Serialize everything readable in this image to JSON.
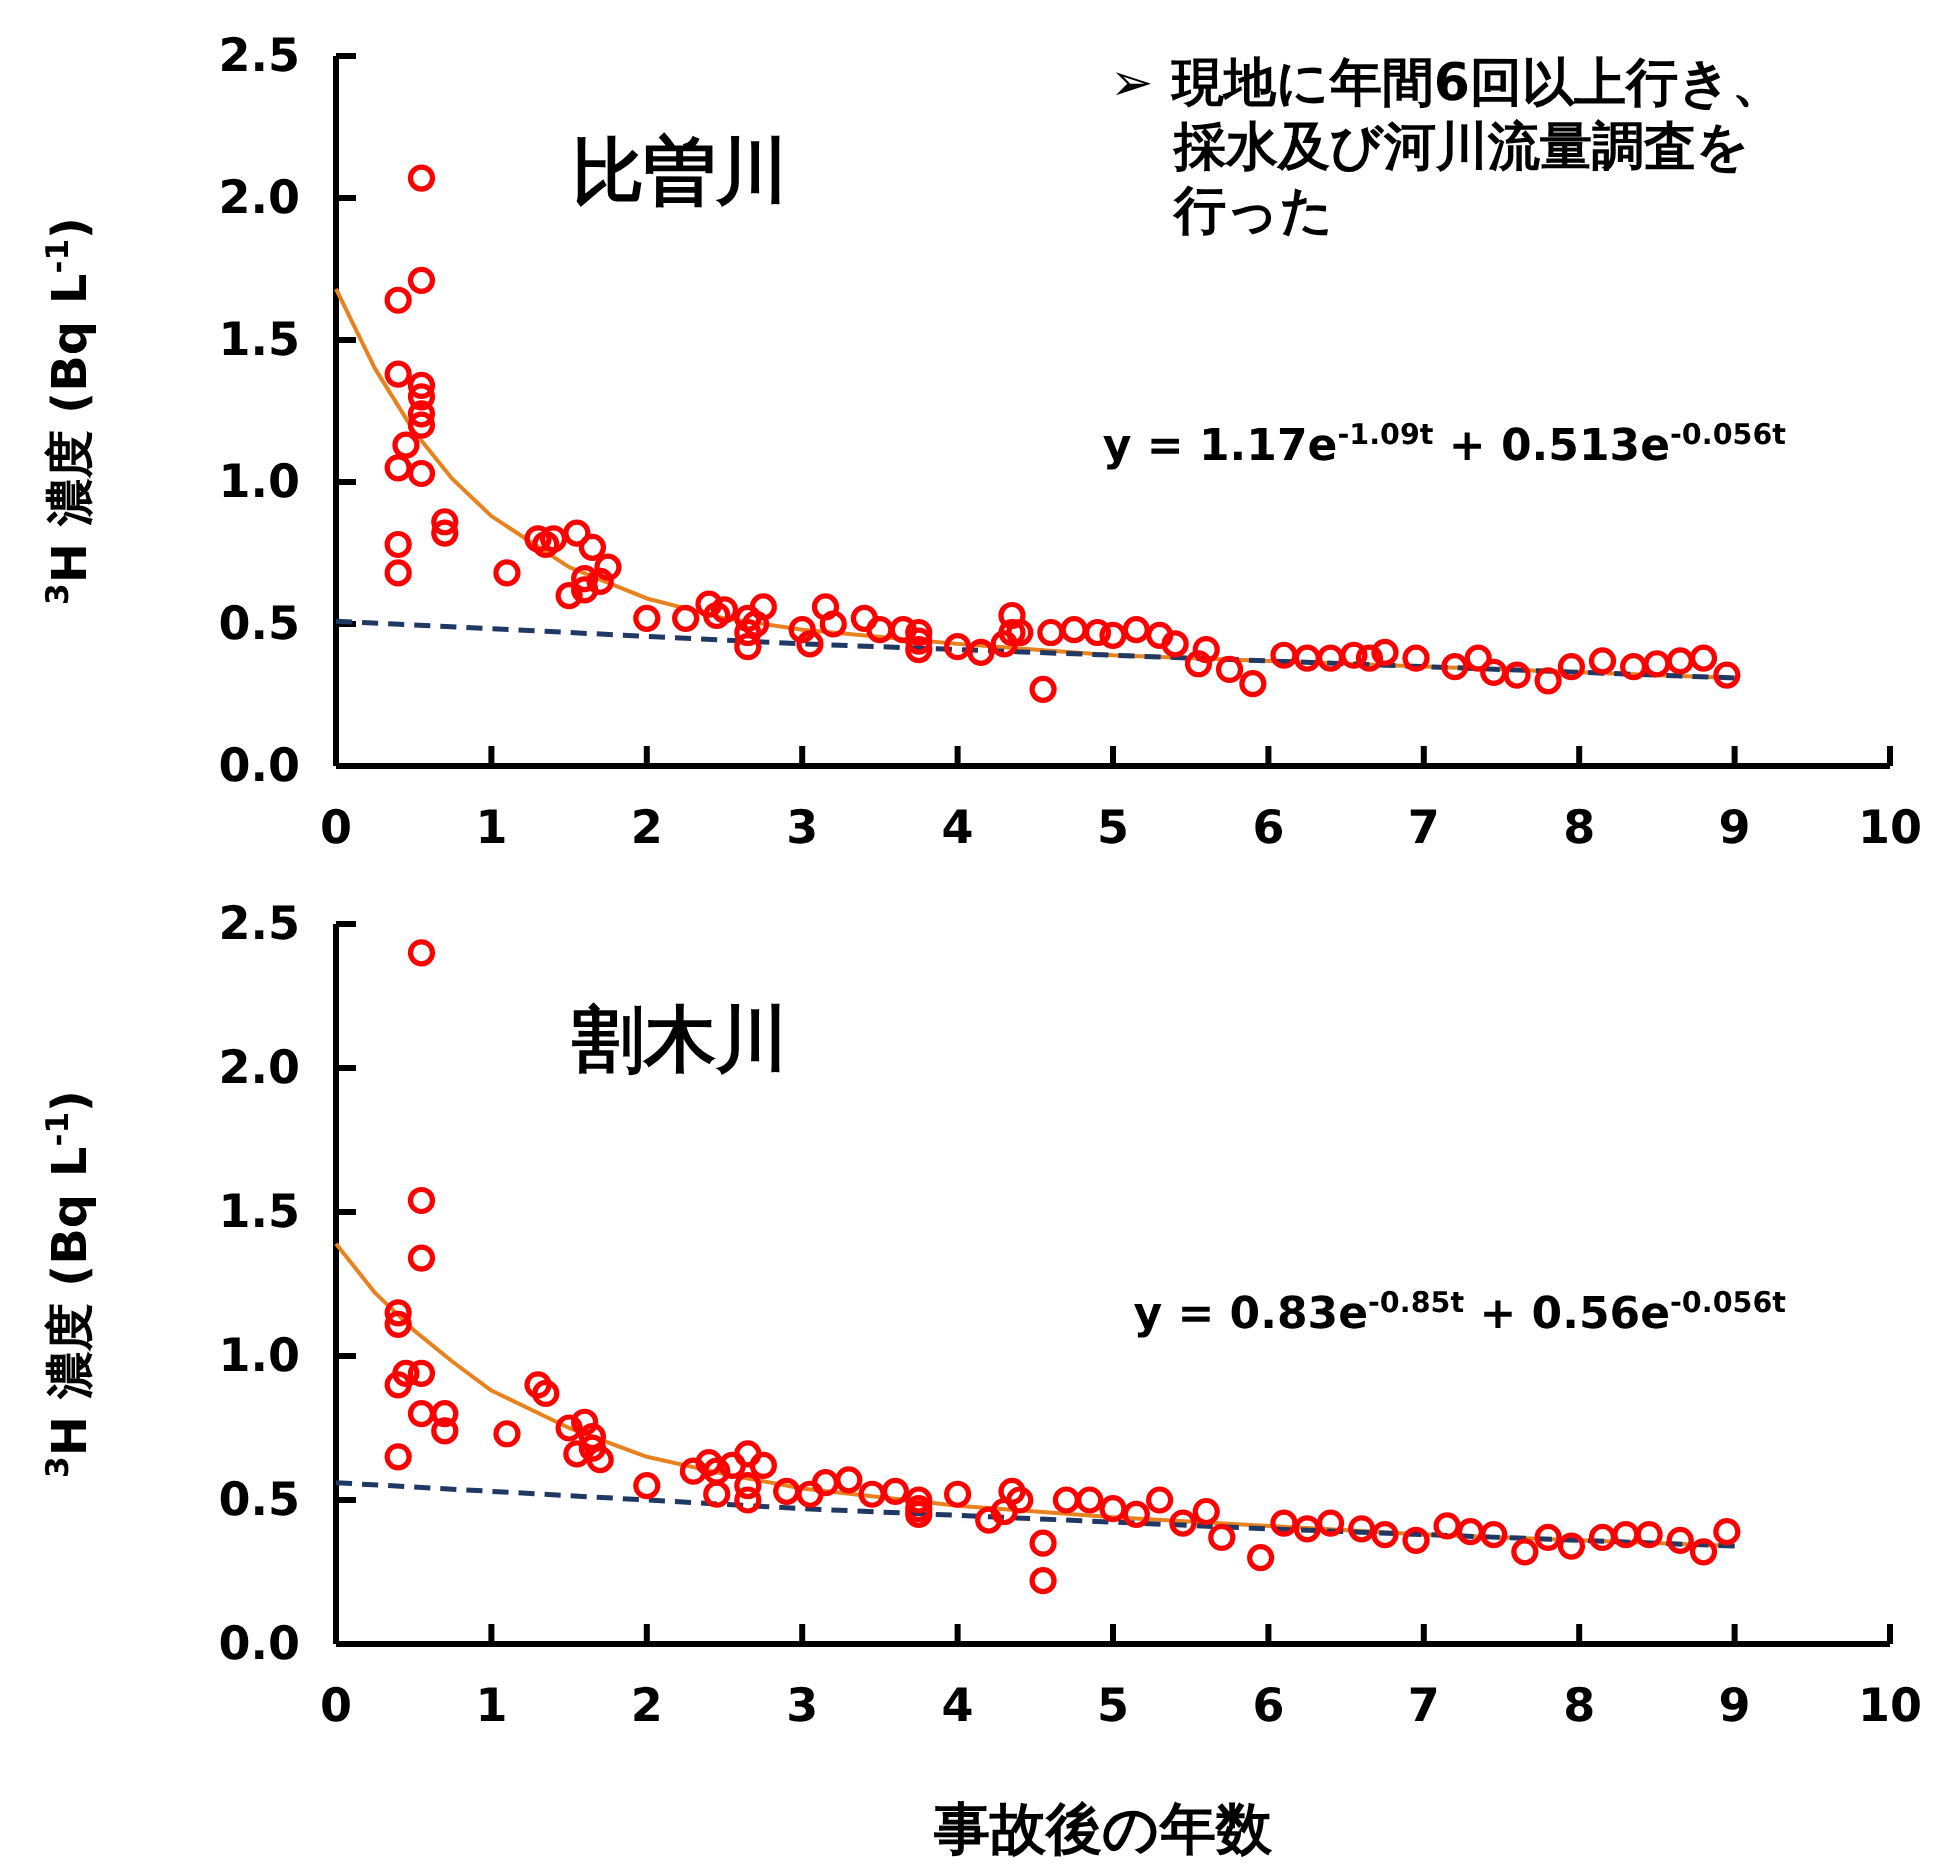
{
  "chart_data": [
    {
      "type": "scatter",
      "title": "比曽川",
      "ylabel": "$^{3}$H 濃度 (Bq L$^{-1}$)",
      "annotations": [
        "y = 1.17e$^{-1.09t}$ + 0.513e$^{-0.056t}$",
        "➢ 現地に年間6回以上行き、採水及び河川流量調査を行った"
      ],
      "xlim": [
        0,
        10
      ],
      "xticks": [
        0,
        1,
        2,
        3,
        4,
        5,
        6,
        7,
        8,
        9,
        10
      ],
      "ylim": [
        0,
        2.5
      ],
      "yticks": [
        {
          "value": 0,
          "label": "0.0"
        },
        {
          "value": 0.5,
          "label": "0.5"
        },
        {
          "value": 1,
          "label": "1.0"
        },
        {
          "value": 1.5,
          "label": "1.5"
        },
        {
          "value": 2,
          "label": "2.0"
        },
        {
          "value": 2.5,
          "label": "2.5"
        }
      ],
      "grid": false,
      "series": [
        {
          "type": "line",
          "color": "#e8821e",
          "line_style": "solid",
          "marker": "none",
          "x": [
            0,
            0.25,
            0.5,
            0.75,
            1,
            1.5,
            2,
            2.5,
            3,
            4,
            5,
            6,
            7,
            8,
            9
          ],
          "values": [
            1.68,
            1.4,
            1.18,
            1.01,
            0.88,
            0.7,
            0.59,
            0.52,
            0.48,
            0.43,
            0.39,
            0.37,
            0.35,
            0.33,
            0.31
          ]
        },
        {
          "type": "line",
          "color": "#1f3864",
          "line_style": "dashed",
          "marker": "none",
          "x": [
            0,
            3,
            6,
            9
          ],
          "values": [
            0.51,
            0.43,
            0.37,
            0.31
          ]
        },
        {
          "color": "#ff0000",
          "marker": "circle",
          "x": [
            0.4,
            0.4,
            0.4,
            0.4,
            0.4,
            0.45,
            0.55,
            0.55,
            0.55,
            0.55,
            0.55,
            0.55,
            0.55,
            0.7,
            0.7,
            1.1,
            1.3,
            1.35,
            1.4,
            1.5,
            1.55,
            1.6,
            1.6,
            1.65,
            1.7,
            1.75,
            2.0,
            2.25,
            2.4,
            2.45,
            2.5,
            2.65,
            2.65,
            2.65,
            2.7,
            2.75,
            3.0,
            3.05,
            3.15,
            3.2,
            3.4,
            3.5,
            3.65,
            3.75,
            3.75,
            3.75,
            4.0,
            4.15,
            4.3,
            4.35,
            4.35,
            4.4,
            4.55,
            4.6,
            4.75,
            4.9,
            5.0,
            5.15,
            5.3,
            5.4,
            5.55,
            5.6,
            5.75,
            5.9,
            6.1,
            6.25,
            6.4,
            6.55,
            6.65,
            6.75,
            6.95,
            7.2,
            7.35,
            7.45,
            7.6,
            7.8,
            7.95,
            8.15,
            8.35,
            8.5,
            8.65,
            8.8,
            8.95
          ],
          "values": [
            1.64,
            1.38,
            1.05,
            0.78,
            0.68,
            1.13,
            2.07,
            1.71,
            1.34,
            1.3,
            1.24,
            1.2,
            1.03,
            0.86,
            0.82,
            0.68,
            0.8,
            0.78,
            0.8,
            0.6,
            0.82,
            0.66,
            0.62,
            0.77,
            0.65,
            0.7,
            0.52,
            0.52,
            0.57,
            0.53,
            0.55,
            0.52,
            0.47,
            0.42,
            0.5,
            0.56,
            0.48,
            0.43,
            0.56,
            0.5,
            0.52,
            0.48,
            0.48,
            0.47,
            0.44,
            0.41,
            0.42,
            0.4,
            0.43,
            0.53,
            0.47,
            0.47,
            0.27,
            0.47,
            0.48,
            0.47,
            0.46,
            0.48,
            0.46,
            0.43,
            0.36,
            0.41,
            0.34,
            0.29,
            0.39,
            0.38,
            0.38,
            0.39,
            0.38,
            0.4,
            0.38,
            0.35,
            0.38,
            0.33,
            0.32,
            0.3,
            0.35,
            0.37,
            0.35,
            0.36,
            0.37,
            0.38,
            0.32
          ]
        }
      ]
    },
    {
      "type": "scatter",
      "title": "割木川",
      "xlabel": "事故後の年数",
      "ylabel": "$^{3}$H 濃度 (Bq L$^{-1}$)",
      "annotations": [
        "y = 0.83e$^{-0.85t}$ + 0.56e$^{-0.056t}$"
      ],
      "xlim": [
        0,
        10
      ],
      "xticks": [
        0,
        1,
        2,
        3,
        4,
        5,
        6,
        7,
        8,
        9,
        10
      ],
      "ylim": [
        0,
        2.5
      ],
      "yticks": [
        {
          "value": 0,
          "label": "0.0"
        },
        {
          "value": 0.5,
          "label": "0.5"
        },
        {
          "value": 1,
          "label": "1.0"
        },
        {
          "value": 1.5,
          "label": "1.5"
        },
        {
          "value": 2,
          "label": "2.0"
        },
        {
          "value": 2.5,
          "label": "2.5"
        }
      ],
      "grid": false,
      "series": [
        {
          "type": "line",
          "color": "#e8821e",
          "line_style": "solid",
          "marker": "none",
          "x": [
            0,
            0.25,
            0.5,
            0.75,
            1,
            1.5,
            2,
            2.5,
            3,
            4,
            5,
            6,
            7,
            8,
            9
          ],
          "values": [
            1.39,
            1.22,
            1.09,
            0.98,
            0.88,
            0.75,
            0.65,
            0.59,
            0.54,
            0.48,
            0.44,
            0.41,
            0.38,
            0.36,
            0.34
          ]
        },
        {
          "type": "line",
          "color": "#1f3864",
          "line_style": "dashed",
          "marker": "none",
          "x": [
            0,
            3,
            6,
            9
          ],
          "values": [
            0.56,
            0.47,
            0.4,
            0.34
          ]
        },
        {
          "color": "#ff0000",
          "marker": "circle",
          "x": [
            0.4,
            0.4,
            0.4,
            0.4,
            0.45,
            0.55,
            0.55,
            0.55,
            0.55,
            0.55,
            0.7,
            0.7,
            1.1,
            1.3,
            1.35,
            1.5,
            1.55,
            1.6,
            1.65,
            1.65,
            1.7,
            2.0,
            2.3,
            2.4,
            2.45,
            2.45,
            2.55,
            2.65,
            2.65,
            2.65,
            2.75,
            2.9,
            3.05,
            3.15,
            3.3,
            3.45,
            3.6,
            3.75,
            3.75,
            3.75,
            4.0,
            4.2,
            4.3,
            4.35,
            4.4,
            4.55,
            4.55,
            4.7,
            4.85,
            5.0,
            5.15,
            5.3,
            5.45,
            5.6,
            5.7,
            5.95,
            6.1,
            6.25,
            6.4,
            6.6,
            6.75,
            6.95,
            7.15,
            7.3,
            7.45,
            7.65,
            7.8,
            7.95,
            8.15,
            8.3,
            8.45,
            8.65,
            8.8,
            8.95
          ],
          "values": [
            1.15,
            1.11,
            0.9,
            0.65,
            0.94,
            2.4,
            1.54,
            1.34,
            0.94,
            0.8,
            0.8,
            0.74,
            0.73,
            0.9,
            0.87,
            0.75,
            0.66,
            0.77,
            0.72,
            0.68,
            0.64,
            0.55,
            0.6,
            0.63,
            0.6,
            0.52,
            0.62,
            0.66,
            0.55,
            0.5,
            0.62,
            0.53,
            0.52,
            0.56,
            0.57,
            0.52,
            0.53,
            0.5,
            0.47,
            0.45,
            0.52,
            0.43,
            0.46,
            0.53,
            0.5,
            0.35,
            0.22,
            0.5,
            0.5,
            0.47,
            0.45,
            0.5,
            0.42,
            0.46,
            0.37,
            0.3,
            0.42,
            0.4,
            0.42,
            0.4,
            0.38,
            0.36,
            0.41,
            0.39,
            0.38,
            0.32,
            0.37,
            0.34,
            0.37,
            0.38,
            0.38,
            0.36,
            0.32,
            0.39
          ]
        }
      ]
    }
  ]
}
